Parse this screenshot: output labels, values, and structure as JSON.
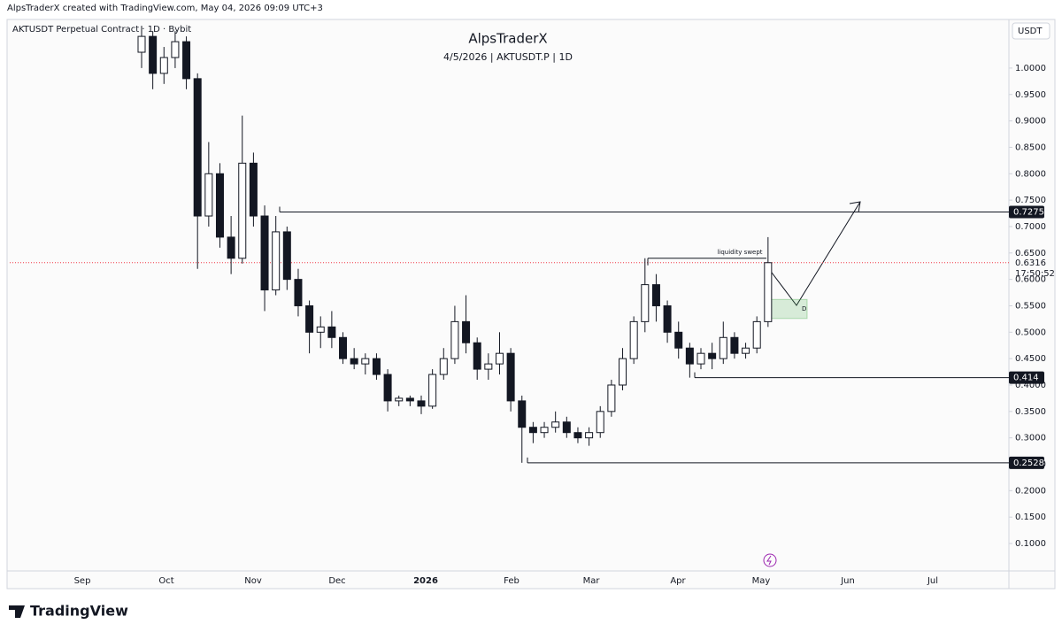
{
  "header": "AlpsTraderX created with TradingView.com, May 04, 2026 09:09 UTC+3",
  "symbol": "AKTUSDT Perpetual Contract · 1D · Bybit",
  "currency": "USDT",
  "brand": "TradingView",
  "chart_data": {
    "type": "candlestick",
    "title": "AlpsTraderX",
    "subtitle": "4/5/2026 | AKTUSDT.P | 1D",
    "x_labels": [
      "Sep",
      "Oct",
      "Nov",
      "Dec",
      "2026",
      "Feb",
      "Mar",
      "Apr",
      "May",
      "Jun",
      "Jul"
    ],
    "open": [
      1.03,
      1.06,
      0.99,
      1.02,
      1.05,
      0.98,
      0.72,
      0.8,
      0.68,
      0.64,
      0.82,
      0.72,
      0.58,
      0.69,
      0.6,
      0.55,
      0.5,
      0.51,
      0.49,
      0.45,
      0.44,
      0.45,
      0.42,
      0.37,
      0.375,
      0.37,
      0.36,
      0.42,
      0.45,
      0.52,
      0.48,
      0.43,
      0.44,
      0.46,
      0.37,
      0.32,
      0.31,
      0.32,
      0.33,
      0.31,
      0.3,
      0.31,
      0.35,
      0.4,
      0.45,
      0.52,
      0.59,
      0.55,
      0.5,
      0.47,
      0.44,
      0.46,
      0.45,
      0.49,
      0.46,
      0.47,
      0.52
    ],
    "high": [
      1.08,
      1.07,
      1.04,
      1.07,
      1.06,
      0.99,
      0.86,
      0.82,
      0.72,
      0.91,
      0.84,
      0.74,
      0.72,
      0.7,
      0.62,
      0.56,
      0.53,
      0.54,
      0.5,
      0.47,
      0.46,
      0.46,
      0.43,
      0.38,
      0.38,
      0.38,
      0.43,
      0.47,
      0.55,
      0.57,
      0.49,
      0.46,
      0.5,
      0.47,
      0.38,
      0.33,
      0.33,
      0.35,
      0.34,
      0.32,
      0.32,
      0.36,
      0.41,
      0.47,
      0.53,
      0.64,
      0.61,
      0.56,
      0.52,
      0.48,
      0.47,
      0.48,
      0.52,
      0.5,
      0.48,
      0.53,
      0.68
    ],
    "low": [
      1.0,
      0.96,
      0.97,
      1.0,
      0.96,
      0.62,
      0.7,
      0.66,
      0.61,
      0.63,
      0.7,
      0.54,
      0.57,
      0.58,
      0.53,
      0.46,
      0.47,
      0.47,
      0.44,
      0.43,
      0.42,
      0.41,
      0.35,
      0.36,
      0.36,
      0.345,
      0.355,
      0.41,
      0.44,
      0.46,
      0.41,
      0.41,
      0.42,
      0.35,
      0.2528,
      0.29,
      0.3,
      0.31,
      0.3,
      0.29,
      0.285,
      0.3,
      0.34,
      0.39,
      0.44,
      0.5,
      0.52,
      0.48,
      0.45,
      0.414,
      0.43,
      0.43,
      0.44,
      0.45,
      0.45,
      0.46,
      0.51
    ],
    "close": [
      1.06,
      0.99,
      1.02,
      1.05,
      0.98,
      0.72,
      0.8,
      0.68,
      0.64,
      0.82,
      0.72,
      0.58,
      0.69,
      0.6,
      0.55,
      0.5,
      0.51,
      0.49,
      0.45,
      0.44,
      0.45,
      0.42,
      0.37,
      0.375,
      0.37,
      0.36,
      0.42,
      0.45,
      0.52,
      0.48,
      0.43,
      0.44,
      0.46,
      0.37,
      0.32,
      0.31,
      0.32,
      0.33,
      0.31,
      0.3,
      0.31,
      0.35,
      0.4,
      0.45,
      0.52,
      0.59,
      0.55,
      0.5,
      0.47,
      0.44,
      0.46,
      0.45,
      0.49,
      0.46,
      0.47,
      0.52,
      0.6316
    ],
    "ylim": [
      0.0481,
      1.087
    ],
    "yticks": [
      {
        "value": 0.1,
        "label": "0.1000"
      },
      {
        "value": 0.15,
        "label": "0.1500"
      },
      {
        "value": 0.2,
        "label": "0.2000"
      },
      {
        "value": 0.25,
        "label": "0.2500"
      },
      {
        "value": 0.3,
        "label": "0.3000"
      },
      {
        "value": 0.35,
        "label": "0.3500"
      },
      {
        "value": 0.4,
        "label": "0.4000"
      },
      {
        "value": 0.45,
        "label": "0.4500"
      },
      {
        "value": 0.5,
        "label": "0.5000"
      },
      {
        "value": 0.55,
        "label": "0.5500"
      },
      {
        "value": 0.6,
        "label": "0.6000"
      },
      {
        "value": 0.65,
        "label": "0.6500"
      },
      {
        "value": 0.7,
        "label": "0.7000"
      },
      {
        "value": 0.75,
        "label": "0.7500"
      },
      {
        "value": 0.8,
        "label": "0.8000"
      },
      {
        "value": 0.85,
        "label": "0.8500"
      },
      {
        "value": 0.9,
        "label": "0.9000"
      },
      {
        "value": 0.95,
        "label": "0.9500"
      },
      {
        "value": 1.0,
        "label": "1.0000"
      }
    ],
    "levels": [
      0.7275,
      0.414,
      0.2528
    ],
    "last_price": 0.6316,
    "countdown": "17:50:52",
    "annotation": {
      "text": "liquidity swept",
      "value": 0.64
    },
    "zone": {
      "label": "D",
      "range": [
        0.526,
        0.562
      ]
    }
  }
}
